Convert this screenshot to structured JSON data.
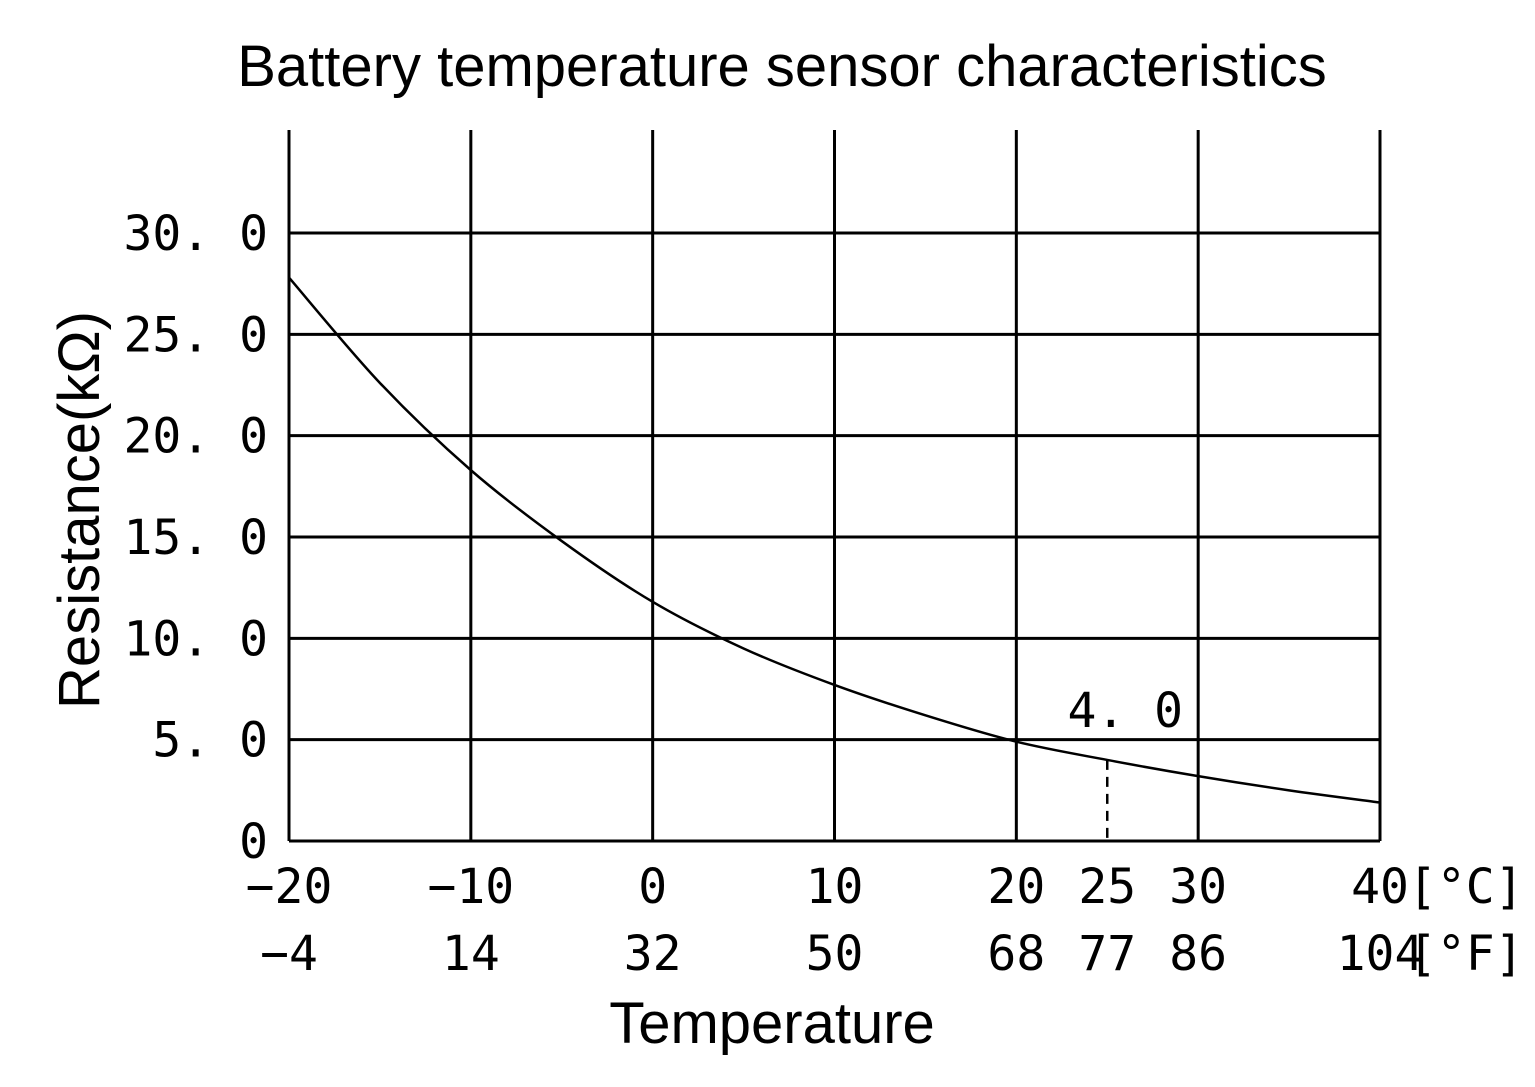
{
  "chart_data": {
    "type": "line",
    "title": "Battery temperature sensor characteristics",
    "xlabel": "Temperature",
    "ylabel": "Resistance(kΩ)",
    "x_unit_primary": "[°C]",
    "x_unit_secondary": "[°F]",
    "xlim": [
      -20,
      40
    ],
    "ylim": [
      0,
      30
    ],
    "x_ticks_c": [
      -20,
      -10,
      0,
      10,
      20,
      25,
      30,
      40
    ],
    "x_tick_labels_c": [
      "−20",
      "−10",
      "0",
      "10",
      "20",
      "25",
      "30",
      "40"
    ],
    "x_tick_labels_f": [
      "−4",
      "14",
      "32",
      "50",
      "68",
      "77",
      "86",
      "104"
    ],
    "y_ticks": [
      0,
      5,
      10,
      15,
      20,
      25,
      30
    ],
    "y_tick_labels": [
      "0",
      "5. 0",
      "10. 0",
      "15. 0",
      "20. 0",
      "25. 0",
      "30. 0"
    ],
    "grid": true,
    "series": [
      {
        "x": [
          -20,
          -15,
          -10,
          -5,
          0,
          5,
          10,
          15,
          20,
          25,
          30,
          35,
          40
        ],
        "y": [
          27.8,
          22.6,
          18.3,
          14.8,
          11.8,
          9.5,
          7.7,
          6.2,
          4.9,
          4.0,
          3.2,
          2.5,
          1.9
        ]
      }
    ],
    "annotation": {
      "x": 25,
      "y": 4.0,
      "label": "4. 0"
    }
  }
}
